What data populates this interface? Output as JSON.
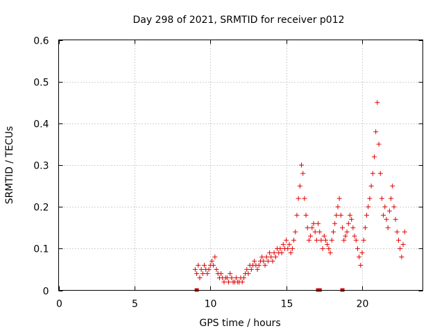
{
  "chart_data": {
    "type": "scatter",
    "title": "Day 298 of 2021, SRMTID for receiver p012",
    "xlabel": "GPS time / hours",
    "ylabel": "SRMTID / TECUs",
    "xlim": [
      0,
      24
    ],
    "ylim": [
      0,
      0.6
    ],
    "xticks": [
      0,
      5,
      10,
      15,
      20
    ],
    "xtick_labels": [
      "0",
      "5",
      "10",
      "15",
      "20"
    ],
    "yticks": [
      0,
      0.1,
      0.2,
      0.3,
      0.4,
      0.5,
      0.6
    ],
    "ytick_labels": [
      "0",
      "0.1",
      "0.2",
      "0.3",
      "0.4",
      "0.5",
      "0.6"
    ],
    "grid": true,
    "marker": "plus",
    "color": "#dd0000",
    "data_gaps_hours": [
      9.1,
      17.1,
      17.2,
      18.7
    ],
    "series": [
      {
        "name": "SRMTID",
        "x": [
          9.0,
          9.1,
          9.2,
          9.3,
          9.4,
          9.5,
          9.6,
          9.7,
          9.8,
          9.9,
          10.0,
          10.1,
          10.2,
          10.3,
          10.4,
          10.5,
          10.6,
          10.7,
          10.8,
          10.9,
          11.0,
          11.1,
          11.2,
          11.3,
          11.4,
          11.5,
          11.6,
          11.7,
          11.8,
          11.9,
          12.0,
          12.1,
          12.2,
          12.3,
          12.4,
          12.5,
          12.6,
          12.7,
          12.8,
          12.9,
          13.0,
          13.1,
          13.2,
          13.3,
          13.4,
          13.5,
          13.6,
          13.7,
          13.8,
          13.9,
          14.0,
          14.1,
          14.2,
          14.3,
          14.4,
          14.5,
          14.6,
          14.7,
          14.8,
          14.9,
          15.0,
          15.1,
          15.2,
          15.3,
          15.4,
          15.5,
          15.6,
          15.7,
          15.8,
          15.9,
          16.0,
          16.1,
          16.2,
          16.3,
          16.4,
          16.5,
          16.6,
          16.7,
          16.8,
          16.9,
          17.0,
          17.1,
          17.2,
          17.3,
          17.4,
          17.5,
          17.6,
          17.7,
          17.8,
          17.9,
          18.0,
          18.1,
          18.2,
          18.3,
          18.4,
          18.5,
          18.6,
          18.7,
          18.8,
          18.9,
          19.0,
          19.1,
          19.2,
          19.3,
          19.4,
          19.5,
          19.6,
          19.7,
          19.8,
          19.9,
          20.0,
          20.1,
          20.2,
          20.3,
          20.4,
          20.5,
          20.6,
          20.7,
          20.8,
          20.9,
          21.0,
          21.1,
          21.2,
          21.3,
          21.4,
          21.5,
          21.6,
          21.7,
          21.8,
          21.9,
          22.0,
          22.1,
          22.2,
          22.3,
          22.4,
          22.5,
          22.6,
          22.7,
          22.8
        ],
        "y": [
          0.05,
          0.04,
          0.06,
          0.03,
          0.05,
          0.04,
          0.06,
          0.05,
          0.04,
          0.05,
          0.06,
          0.07,
          0.06,
          0.08,
          0.05,
          0.04,
          0.03,
          0.04,
          0.03,
          0.02,
          0.03,
          0.03,
          0.02,
          0.04,
          0.03,
          0.02,
          0.02,
          0.03,
          0.02,
          0.02,
          0.03,
          0.02,
          0.03,
          0.04,
          0.05,
          0.04,
          0.06,
          0.05,
          0.06,
          0.07,
          0.06,
          0.05,
          0.06,
          0.07,
          0.08,
          0.07,
          0.06,
          0.08,
          0.07,
          0.09,
          0.08,
          0.07,
          0.09,
          0.08,
          0.1,
          0.09,
          0.1,
          0.09,
          0.11,
          0.1,
          0.12,
          0.1,
          0.11,
          0.09,
          0.1,
          0.12,
          0.14,
          0.18,
          0.22,
          0.25,
          0.3,
          0.28,
          0.22,
          0.18,
          0.15,
          0.12,
          0.13,
          0.15,
          0.16,
          0.14,
          0.12,
          0.16,
          0.14,
          0.12,
          0.1,
          0.13,
          0.12,
          0.11,
          0.1,
          0.09,
          0.12,
          0.14,
          0.16,
          0.18,
          0.2,
          0.22,
          0.18,
          0.15,
          0.12,
          0.13,
          0.14,
          0.16,
          0.18,
          0.17,
          0.15,
          0.13,
          0.12,
          0.1,
          0.08,
          0.06,
          0.09,
          0.12,
          0.15,
          0.18,
          0.2,
          0.22,
          0.25,
          0.28,
          0.32,
          0.38,
          0.45,
          0.35,
          0.28,
          0.22,
          0.18,
          0.2,
          0.17,
          0.15,
          0.19,
          0.22,
          0.25,
          0.2,
          0.17,
          0.14,
          0.12,
          0.1,
          0.08,
          0.11,
          0.14
        ]
      }
    ]
  }
}
